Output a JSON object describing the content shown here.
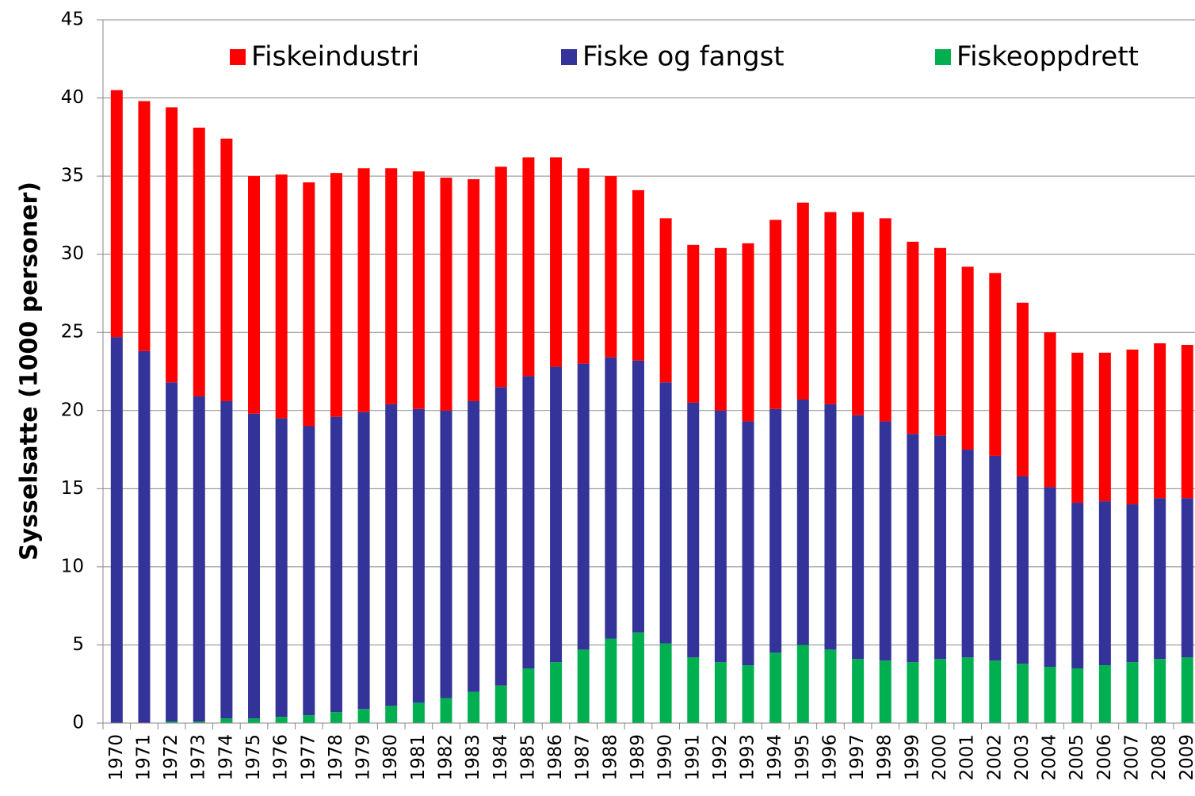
{
  "chart_data": {
    "type": "stacked_bar",
    "y_label": "Sysselsatte (1000 personer)",
    "categories": [
      "1970",
      "1971",
      "1972",
      "1973",
      "1974",
      "1975",
      "1976",
      "1977",
      "1978",
      "1979",
      "1980",
      "1981",
      "1982",
      "1983",
      "1984",
      "1985",
      "1986",
      "1987",
      "1988",
      "1989",
      "1990",
      "1991",
      "1992",
      "1993",
      "1994",
      "1995",
      "1996",
      "1997",
      "1998",
      "1999",
      "2000",
      "2001",
      "2002",
      "2003",
      "2004",
      "2005",
      "2006",
      "2007",
      "2008",
      "2009"
    ],
    "series": [
      {
        "name": "Fiskeindustri",
        "color": "#ff0000",
        "values": [
          15.8,
          16.0,
          17.6,
          17.2,
          16.8,
          15.2,
          15.6,
          15.6,
          15.6,
          15.6,
          15.1,
          15.2,
          14.9,
          14.2,
          14.1,
          14.0,
          13.4,
          12.5,
          11.6,
          10.9,
          10.5,
          10.1,
          10.4,
          11.4,
          12.1,
          12.6,
          12.3,
          13.0,
          13.0,
          12.3,
          12.0,
          11.7,
          11.7,
          11.1,
          9.9,
          9.6,
          9.5,
          9.9,
          9.9,
          9.8
        ]
      },
      {
        "name": "Fiske og fangst",
        "color": "#333399",
        "values": [
          24.7,
          23.8,
          21.7,
          20.8,
          20.3,
          19.5,
          19.1,
          18.5,
          18.9,
          19.0,
          19.3,
          18.8,
          18.4,
          18.6,
          19.1,
          18.7,
          18.9,
          18.3,
          18.0,
          17.4,
          16.7,
          16.3,
          16.1,
          15.6,
          15.6,
          15.7,
          15.7,
          15.6,
          15.3,
          14.6,
          14.3,
          13.3,
          13.1,
          12.0,
          11.5,
          10.6,
          10.5,
          10.1,
          10.3,
          10.2
        ]
      },
      {
        "name": "Fiskeoppdrett",
        "color": "#00b050",
        "values": [
          0,
          0,
          0.1,
          0.1,
          0.3,
          0.3,
          0.4,
          0.5,
          0.7,
          0.9,
          1.1,
          1.3,
          1.6,
          2.0,
          2.4,
          3.5,
          3.9,
          4.7,
          5.4,
          5.8,
          5.1,
          4.2,
          3.9,
          3.7,
          4.5,
          5.0,
          4.7,
          4.1,
          4.0,
          3.9,
          4.1,
          4.2,
          4.0,
          3.8,
          3.6,
          3.5,
          3.7,
          3.9,
          4.1,
          4.2
        ]
      }
    ],
    "ylim": [
      0,
      45
    ],
    "yticks": [
      0,
      5,
      10,
      15,
      20,
      25,
      30,
      35,
      40,
      45
    ],
    "grid": true,
    "legend": "top"
  }
}
